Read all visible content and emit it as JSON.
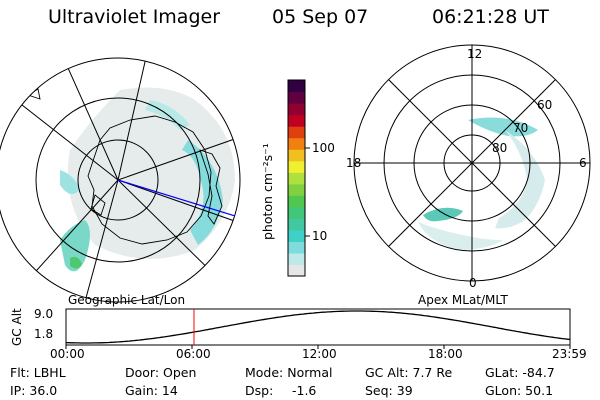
{
  "header": {
    "instrument": "Ultraviolet Imager",
    "date": "05 Sep 07",
    "time": "06:21:28 UT"
  },
  "left_panel": {
    "caption": "Geographic Lat/Lon"
  },
  "colorbar": {
    "ticks": [
      "100",
      "10"
    ],
    "unit_label": "photon cm⁻²s⁻¹",
    "colors": [
      "#e6e6e6",
      "#bfe8e8",
      "#7fdcdc",
      "#3fd0c8",
      "#40c8a0",
      "#40c878",
      "#50c850",
      "#80d040",
      "#b0e040",
      "#f0f030",
      "#f0c020",
      "#f08010",
      "#e04010",
      "#c00020",
      "#900030",
      "#600040",
      "#300040"
    ]
  },
  "right_panel": {
    "caption": "Apex MLat/MLT",
    "mlt_labels": [
      "12",
      "18",
      "6",
      "0"
    ],
    "mlat_labels": [
      "60",
      "70",
      "80"
    ]
  },
  "altitude_plot": {
    "ylabel": "GC Alt",
    "yticks": [
      "9.0",
      "1.8"
    ],
    "xticks": [
      "00:00",
      "06:00",
      "12:00",
      "18:00",
      "23:59"
    ],
    "marker_color": "#ff0000"
  },
  "info": {
    "flt": "Flt: LBHL",
    "ip": "IP: 36.0",
    "door": "Door: Open",
    "gain": "Gain: 14",
    "mode": "Mode: Normal",
    "dsp_label": "Dsp:",
    "dsp_value": "-1.6",
    "gcalt": "GC Alt: 7.7 Re",
    "seq": "Seq: 39",
    "glat": "GLat: -84.7",
    "glon": "GLon: 50.1"
  }
}
